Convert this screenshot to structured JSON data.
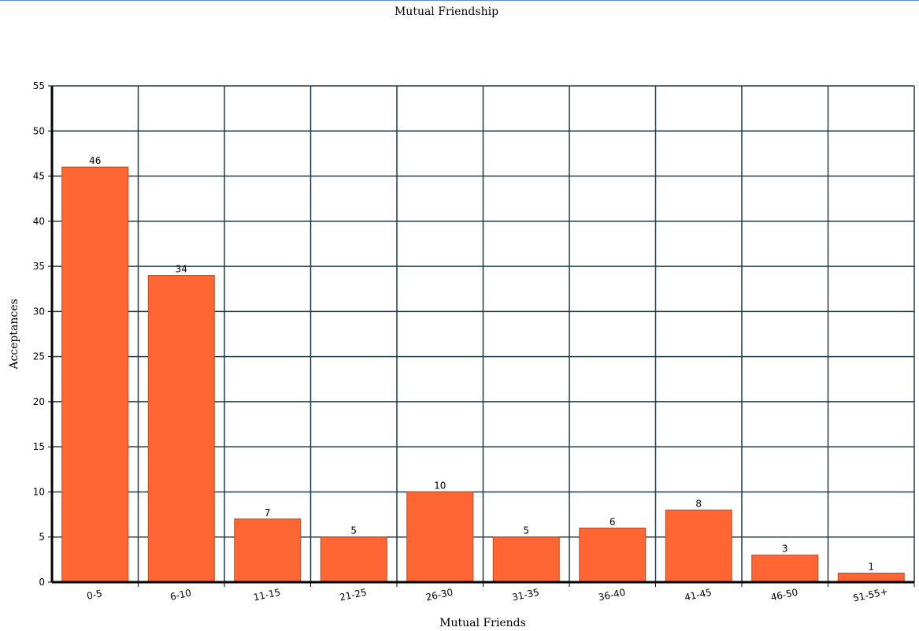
{
  "chart_data": {
    "type": "bar",
    "title": "Mutual Friendship",
    "xlabel": "Mutual Friends",
    "ylabel": "Acceptances",
    "categories": [
      "0-5",
      "6-10",
      "11-15",
      "21-25",
      "26-30",
      "31-35",
      "36-40",
      "41-45",
      "46-50",
      "51-55+"
    ],
    "values": [
      46,
      34,
      7,
      5,
      10,
      5,
      6,
      8,
      3,
      1
    ],
    "ylim": [
      0,
      55
    ],
    "yticks": [
      0,
      5,
      10,
      15,
      20,
      25,
      30,
      35,
      40,
      45,
      50,
      55
    ],
    "grid": true,
    "legend": "none",
    "colors": {
      "bar": "#ff6633",
      "bar_edge": "#b84a20",
      "grid": "#1f3b4d",
      "axis": "#000000"
    }
  }
}
